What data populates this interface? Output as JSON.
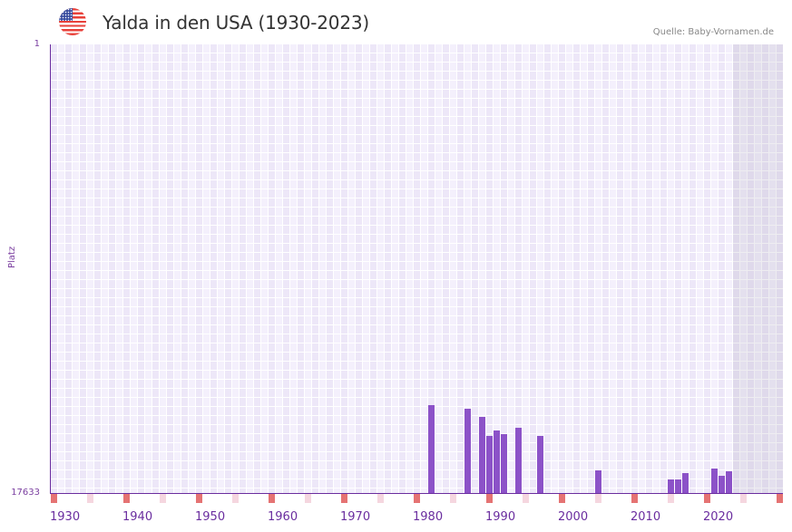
{
  "header": {
    "title": "Yalda in den USA (1930-2023)",
    "flag_icon": "us-flag-icon",
    "source": "Quelle: Baby-Vornamen.de"
  },
  "chart_data": {
    "type": "bar",
    "title": "Yalda in den USA (1930-2023)",
    "xlabel": "",
    "ylabel": "Platz",
    "y_axis_inverted": true,
    "ylim": [
      1,
      17633
    ],
    "y_ticks": [
      "1",
      "17633"
    ],
    "x_range": [
      1930,
      2030
    ],
    "x_ticks": [
      "1930",
      "1940",
      "1950",
      "1960",
      "1970",
      "1980",
      "1990",
      "2000",
      "2010",
      "2020"
    ],
    "grid": true,
    "shaded_region": [
      2024,
      2030
    ],
    "series": [
      {
        "name": "Platz",
        "x": [
          1982,
          1987,
          1989,
          1990,
          1991,
          1992,
          1994,
          1997,
          2005,
          2015,
          2016,
          2017,
          2021,
          2022,
          2023
        ],
        "values": [
          14178,
          14320,
          14640,
          15389,
          15175,
          15318,
          15068,
          15389,
          16742,
          17099,
          17099,
          16850,
          16671,
          16956,
          16778
        ]
      }
    ],
    "decade_markers": [
      1930,
      1940,
      1950,
      1960,
      1970,
      1980,
      1990,
      2000,
      2010,
      2020,
      2030
    ],
    "half_decade_markers": [
      1935,
      1945,
      1955,
      1965,
      1975,
      1985,
      1995,
      2005,
      2015,
      2025
    ],
    "colors": {
      "bar": "#8c52c8",
      "axis": "#6a2d9f",
      "decade_marker": "#e57373",
      "half_decade_marker": "#f5d6df"
    }
  }
}
